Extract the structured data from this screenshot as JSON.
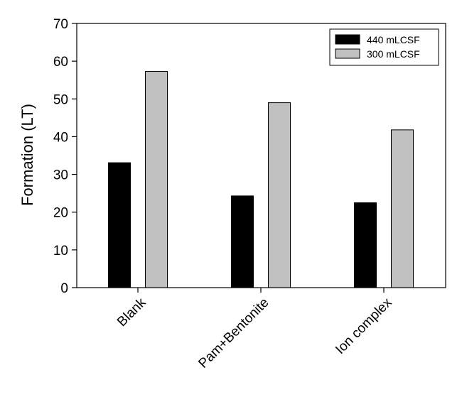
{
  "chart_data": {
    "type": "bar",
    "title": "",
    "xlabel": "",
    "ylabel": "Formation (LT)",
    "categories": [
      "Blank",
      "Pam+Bentonite",
      "Ion complex"
    ],
    "series": [
      {
        "name": "440 mLCSF",
        "values": [
          33.1,
          24.3,
          22.5
        ],
        "color": "#000000"
      },
      {
        "name": "300 mLCSF",
        "values": [
          57.3,
          49.0,
          41.8
        ],
        "color": "#c0c0c0"
      }
    ],
    "ylim": [
      0,
      70
    ],
    "yticks": [
      0,
      10,
      20,
      30,
      40,
      50,
      60,
      70
    ],
    "grid": false,
    "legend_position": "top-right"
  }
}
